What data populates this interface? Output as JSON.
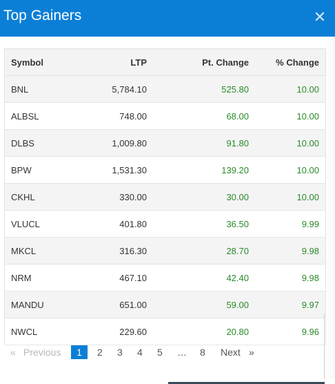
{
  "header": {
    "title": "Top Gainers",
    "close_glyph": "✕",
    "close_icon": "close-icon",
    "bg": "#0b7fd6"
  },
  "table": {
    "columns": [
      "Symbol",
      "LTP",
      "Pt. Change",
      "% Change"
    ],
    "rows": [
      [
        "BNL",
        "5,784.10",
        "525.80",
        "10.00"
      ],
      [
        "ALBSL",
        "748.00",
        "68.00",
        "10.00"
      ],
      [
        "DLBS",
        "1,009.80",
        "91.80",
        "10.00"
      ],
      [
        "BPW",
        "1,531.30",
        "139.20",
        "10.00"
      ],
      [
        "CKHL",
        "330.00",
        "30.00",
        "10.00"
      ],
      [
        "VLUCL",
        "401.80",
        "36.50",
        "9.99"
      ],
      [
        "MKCL",
        "316.30",
        "28.70",
        "9.98"
      ],
      [
        "NRM",
        "467.10",
        "42.40",
        "9.98"
      ],
      [
        "MANDU",
        "651.00",
        "59.00",
        "9.97"
      ],
      [
        "NWCL",
        "229.60",
        "20.80",
        "9.96"
      ]
    ],
    "positive_color": "#2a8a2a"
  },
  "pagination": {
    "previous": "Previous",
    "prev_arrow": "«",
    "pages": [
      "1",
      "2",
      "3",
      "4",
      "5",
      "…",
      "8"
    ],
    "active_page": "1",
    "next": "Next",
    "next_arrow": "»"
  }
}
